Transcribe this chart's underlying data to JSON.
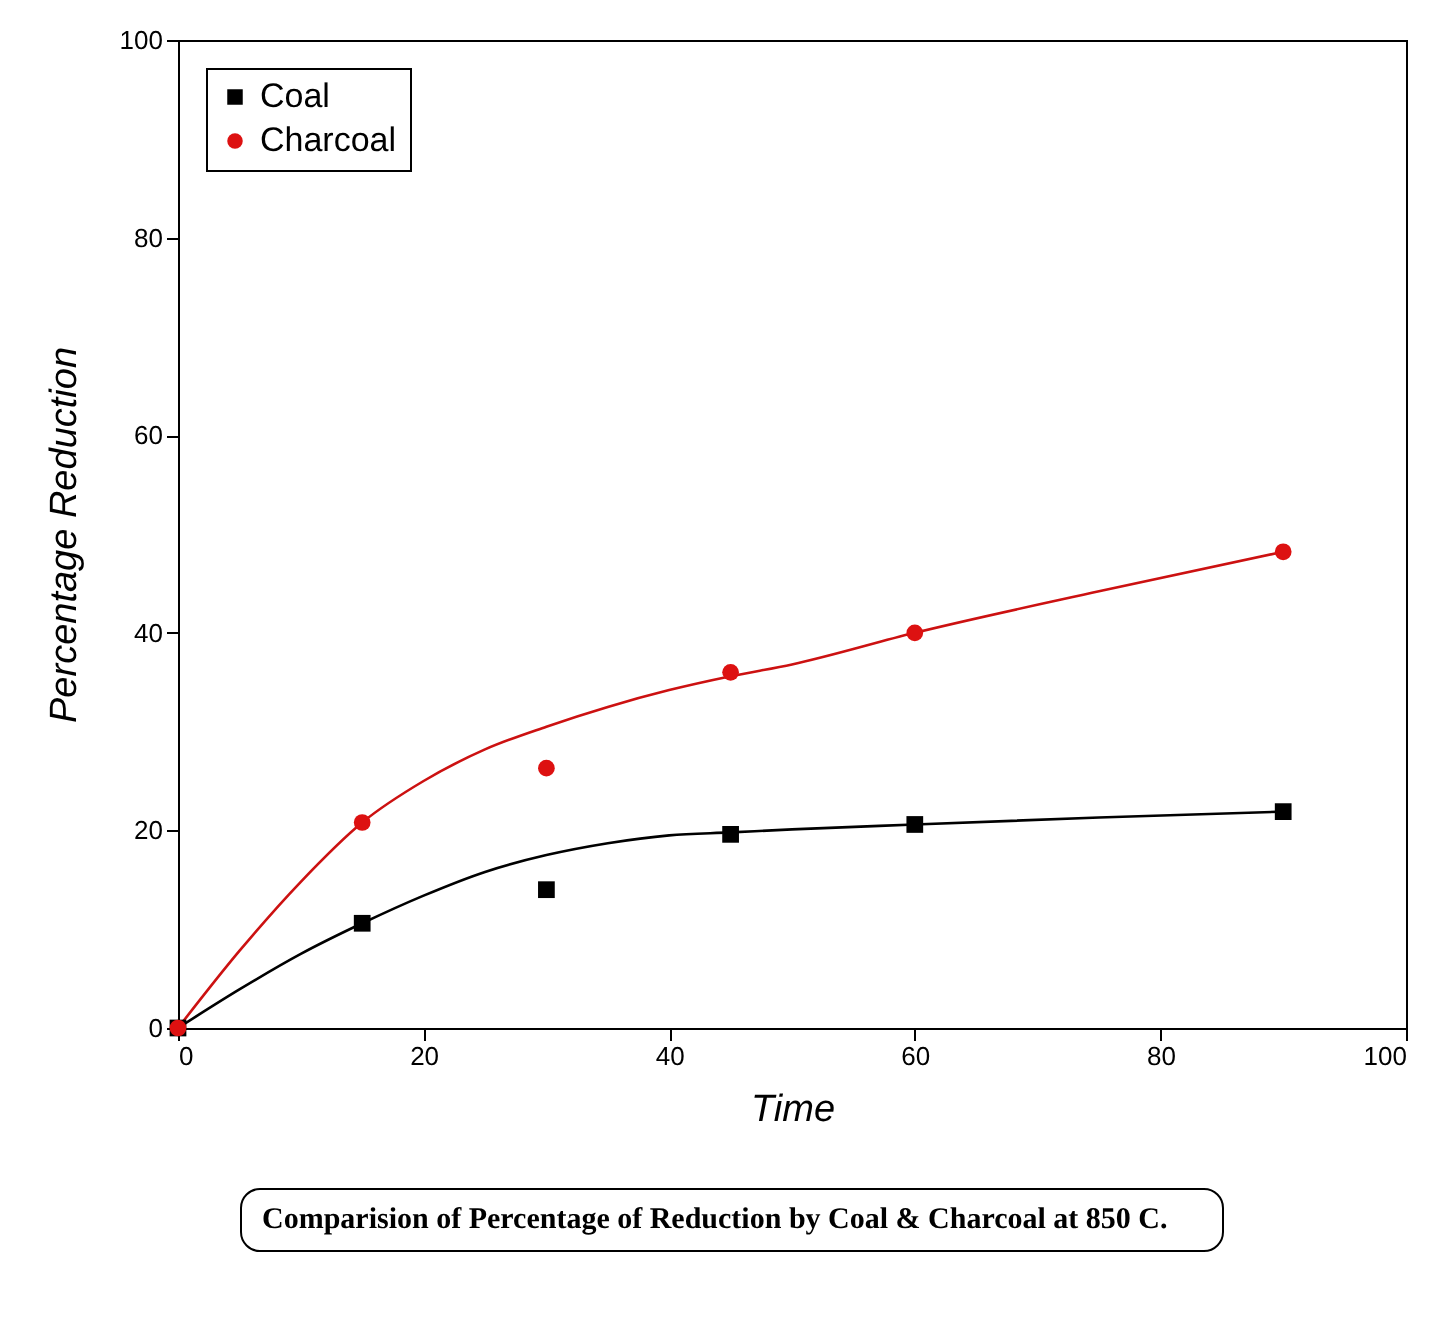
{
  "chart_data": {
    "type": "scatter",
    "xlabel": "Time",
    "ylabel": "Percentage Reduction",
    "annotations": [
      "Comparision of Percentage of Reduction by Coal & Charcoal at 850 C."
    ],
    "xlim": [
      0,
      100
    ],
    "xticks": [
      0,
      20,
      40,
      60,
      80,
      100
    ],
    "ylim": [
      0,
      100
    ],
    "yticks": [
      0,
      20,
      40,
      60,
      80,
      100
    ],
    "legend": "top left",
    "grid": false,
    "series": [
      {
        "type": "line",
        "color": "#000000",
        "x": [
          0,
          5,
          10,
          15,
          20,
          25,
          30,
          35,
          40,
          45,
          50,
          60,
          75,
          90
        ],
        "values": [
          0,
          3.9,
          7.5,
          10.6,
          13.4,
          15.8,
          17.5,
          18.7,
          19.5,
          19.8,
          20.1,
          20.6,
          21.3,
          21.9
        ],
        "marker": "none"
      },
      {
        "type": "line",
        "color": "#cc1111",
        "x": [
          0,
          5,
          10,
          15,
          20,
          25,
          30,
          35,
          40,
          45,
          50,
          60,
          75,
          90
        ],
        "values": [
          0,
          7.8,
          14.8,
          20.8,
          25,
          28.2,
          30.5,
          32.5,
          34.2,
          35.6,
          36.8,
          40,
          44.2,
          48.2
        ],
        "marker": "none"
      },
      {
        "name": "Coal",
        "color": "#000000",
        "marker": "square",
        "x": [
          0,
          15,
          30,
          45,
          60,
          90
        ],
        "values": [
          0,
          10.6,
          14,
          19.6,
          20.6,
          21.9
        ]
      },
      {
        "name": "Charcoal",
        "color": "#dd1111",
        "marker": "circle",
        "x": [
          0,
          15,
          30,
          45,
          60,
          90
        ],
        "values": [
          0,
          20.8,
          26.3,
          36,
          40,
          48.2
        ]
      }
    ]
  }
}
